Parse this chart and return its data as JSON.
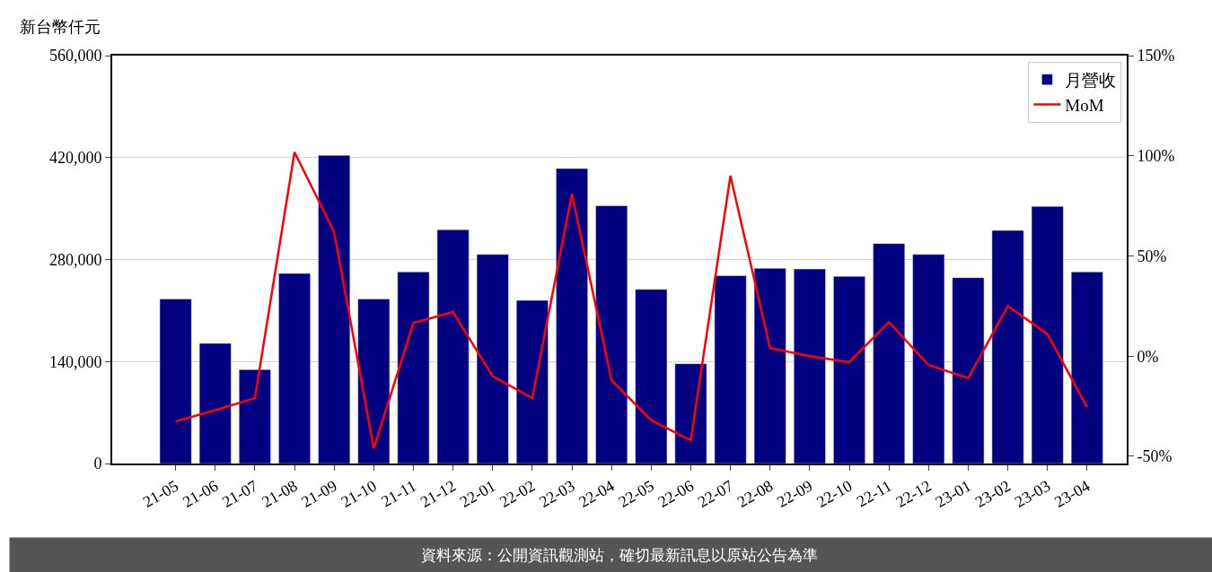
{
  "chart_data": {
    "type": "bar",
    "ylabel": "新台幣仟元",
    "categories": [
      "21-05",
      "21-06",
      "21-07",
      "21-08",
      "21-09",
      "21-10",
      "21-11",
      "21-12",
      "22-01",
      "22-02",
      "22-03",
      "22-04",
      "22-05",
      "22-06",
      "22-07",
      "22-08",
      "22-09",
      "22-10",
      "22-11",
      "22-12",
      "23-01",
      "23-02",
      "23-03",
      "23-04"
    ],
    "series": [
      {
        "name": "月營收",
        "color": "#000080",
        "values": [
          226000,
          165000,
          129000,
          261000,
          423000,
          226000,
          263000,
          321000,
          287000,
          224000,
          405000,
          354000,
          239000,
          137000,
          258000,
          268000,
          267000,
          257000,
          302000,
          287000,
          255000,
          320000,
          353000,
          263000
        ]
      },
      {
        "name": "MoM",
        "type": "line",
        "axis": "y2",
        "color": "#ff0000",
        "values": [
          -32.6,
          -27,
          -21,
          101.8,
          62,
          -46,
          16.5,
          22,
          -10,
          -21,
          81,
          -12,
          -32,
          -42,
          90,
          4,
          0,
          -3,
          17,
          -4.5,
          -11,
          25,
          11,
          -25.5
        ]
      }
    ],
    "ylim": [
      0,
      560000
    ],
    "yticks": [
      {
        "value": 0,
        "label": "0"
      },
      {
        "value": 140000,
        "label": "140,000"
      },
      {
        "value": 280000,
        "label": "280,000"
      },
      {
        "value": 420000,
        "label": "420,000"
      },
      {
        "value": 560000,
        "label": "560,000"
      }
    ],
    "y2lim": [
      -53.6,
      150
    ],
    "y2ticks": [
      {
        "value": -50,
        "label": "-50%"
      },
      {
        "value": 0,
        "label": "0%"
      },
      {
        "value": 50,
        "label": "50%"
      },
      {
        "value": 100,
        "label": "100%"
      },
      {
        "value": 150,
        "label": "150%"
      }
    ],
    "grid": "y",
    "legend": "top right",
    "annotations": [
      "資料來源：公開資訊觀測站，確切最新訊息以原站公告為準"
    ]
  }
}
